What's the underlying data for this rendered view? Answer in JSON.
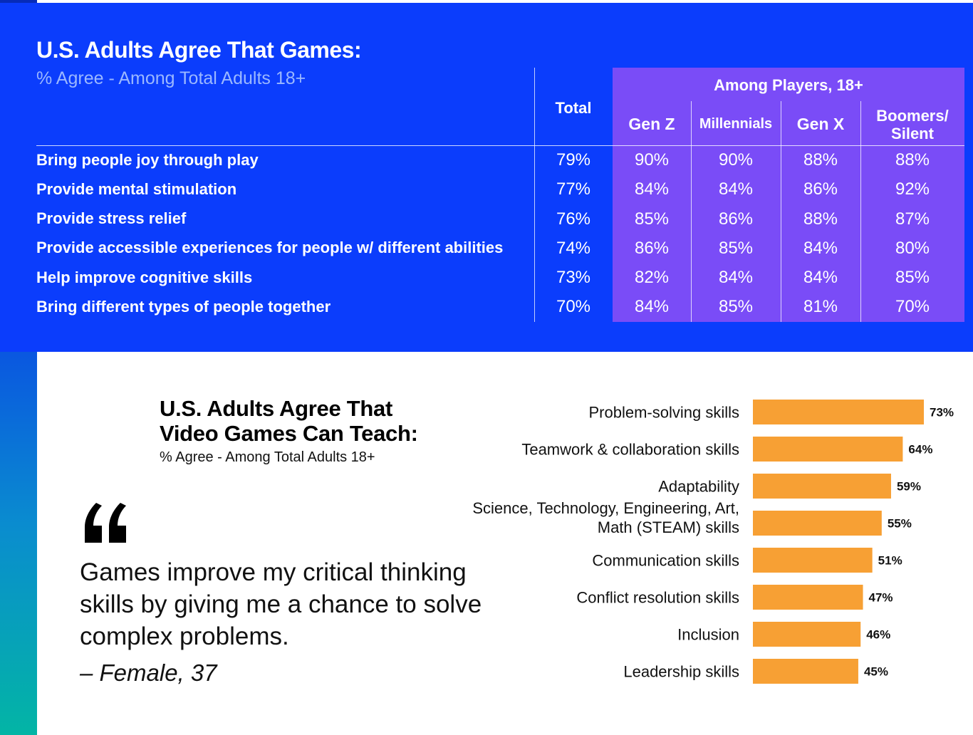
{
  "top_table": {
    "title": "U.S. Adults Agree That Games:",
    "subtitle": "% Agree - Among Total Adults 18+",
    "col_total": "Total",
    "group_header": "Among Players, 18+",
    "columns": [
      "Gen Z",
      "Millennials",
      "Gen X"
    ],
    "col_boomers_line1": "Boomers/",
    "col_boomers_line2": "Silent",
    "rows": [
      {
        "label": "Bring people joy through play",
        "values": [
          "79%",
          "90%",
          "90%",
          "88%",
          "88%"
        ]
      },
      {
        "label": "Provide mental stimulation",
        "values": [
          "77%",
          "84%",
          "84%",
          "86%",
          "92%"
        ]
      },
      {
        "label": "Provide stress relief",
        "values": [
          "76%",
          "85%",
          "86%",
          "88%",
          "87%"
        ]
      },
      {
        "label": "Provide accessible experiences for people w/ different abilities",
        "values": [
          "74%",
          "86%",
          "85%",
          "84%",
          "80%"
        ]
      },
      {
        "label": "Help improve cognitive skills",
        "values": [
          "73%",
          "82%",
          "84%",
          "84%",
          "85%"
        ]
      },
      {
        "label": "Bring different types of people together",
        "values": [
          "70%",
          "84%",
          "85%",
          "81%",
          "70%"
        ]
      }
    ]
  },
  "teach_section": {
    "title_line1": "U.S. Adults Agree That",
    "title_line2": "Video Games Can Teach:",
    "subtitle": "% Agree - Among Total Adults 18+"
  },
  "quote": {
    "icon": "quote-icon",
    "text": "Games improve my critical thinking skills by giving me a chance to solve complex problems.",
    "author": "– Female, 37"
  },
  "colors": {
    "blue_panel": "#0b3dfc",
    "purple": "#7a4cf7",
    "bar": "#f7a034"
  },
  "chart_data": {
    "type": "bar",
    "orientation": "horizontal",
    "title": "U.S. Adults Agree That Video Games Can Teach:",
    "subtitle": "% Agree - Among Total Adults 18+",
    "categories": [
      [
        "Problem-solving skills"
      ],
      [
        "Teamwork & collaboration skills"
      ],
      [
        "Adaptability"
      ],
      [
        "Science, Technology, Engineering, Art,",
        "Math (STEAM) skills"
      ],
      [
        "Communication skills"
      ],
      [
        "Conflict resolution skills"
      ],
      [
        "Inclusion"
      ],
      [
        "Leadership skills"
      ]
    ],
    "values": [
      73,
      64,
      59,
      55,
      51,
      47,
      46,
      45
    ],
    "value_labels": [
      "73%",
      "64%",
      "59%",
      "55%",
      "51%",
      "47%",
      "46%",
      "45%"
    ],
    "xlim": [
      0,
      100
    ],
    "grid": false
  }
}
